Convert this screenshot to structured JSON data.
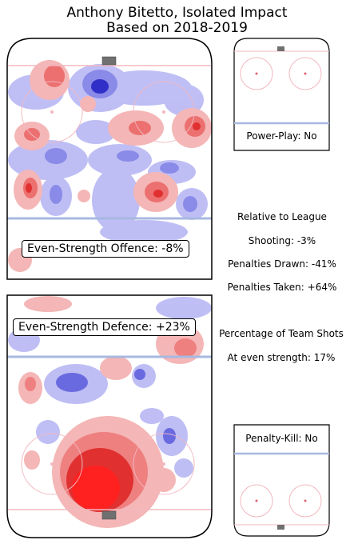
{
  "title_line1": "Anthony Bitetto, Isolated Impact",
  "title_line2": "Based on 2018-2019",
  "colors": {
    "positive": "#e03030",
    "negative": "#3a3ad0",
    "rink_line_red": "#f2b8c0",
    "rink_line_blue": "#a8b8e0",
    "net": "#707070"
  },
  "panels": {
    "offence_label": "Even-Strength Offence: -8%",
    "defence_label": "Even-Strength Defence: +23%",
    "powerplay_label": "Power-Play: No",
    "penaltykill_label": "Penalty-Kill: No"
  },
  "stats": {
    "header": "Relative to League",
    "shooting": "Shooting: -3%",
    "penalties_drawn": "Penalties Drawn: -41%",
    "penalties_taken": "Penalties Taken: +64%",
    "team_shots_header": "Percentage of Team Shots",
    "even_strength_share": "At even strength: 17%"
  },
  "chart_data": [
    {
      "type": "heatmap",
      "panel": "Even-Strength Offence",
      "value_percent": -8
    },
    {
      "type": "heatmap",
      "panel": "Even-Strength Defence",
      "value_percent": 23
    },
    {
      "type": "heatmap",
      "panel": "Power-Play",
      "value": "No"
    },
    {
      "type": "heatmap",
      "panel": "Penalty-Kill",
      "value": "No"
    }
  ]
}
